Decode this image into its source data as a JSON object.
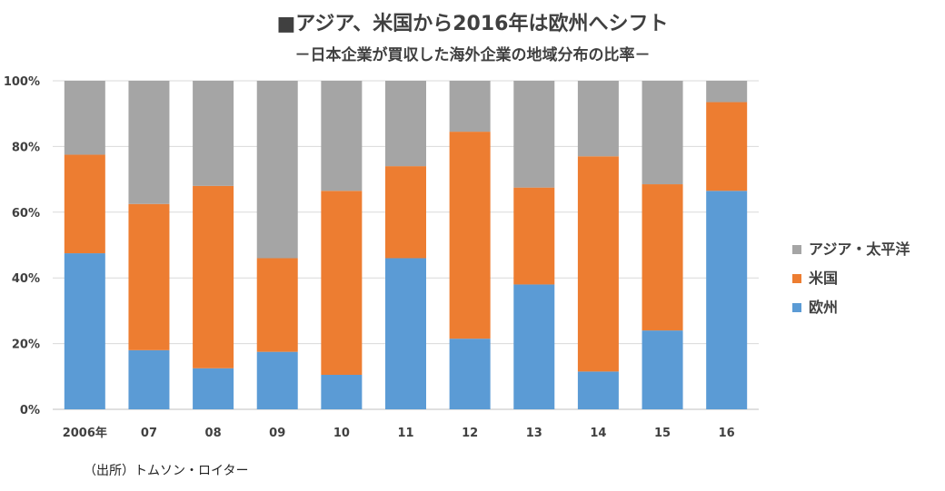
{
  "title": "■アジア、米国から2016年は欧州へシフト",
  "subtitle": "－日本企業が買収した海外企業の地域分布の比率－",
  "source": "（出所）トムソン・ロイター",
  "chart_data": {
    "type": "bar",
    "stacked": true,
    "categories": [
      "2006年",
      "07",
      "08",
      "09",
      "10",
      "11",
      "12",
      "13",
      "14",
      "15",
      "16"
    ],
    "series": [
      {
        "name": "欧州",
        "color": "#5b9bd5",
        "values": [
          47.5,
          18,
          12.5,
          17.5,
          10.5,
          46,
          21.5,
          38,
          11.5,
          24,
          66.5
        ]
      },
      {
        "name": "米国",
        "color": "#ed7d31",
        "values": [
          30,
          44.5,
          55.5,
          28.5,
          56,
          28,
          63,
          29.5,
          65.5,
          44.5,
          27
        ]
      },
      {
        "name": "アジア・太平洋",
        "color": "#a5a5a5",
        "values": [
          22.5,
          37.5,
          32,
          54,
          33.5,
          26,
          15.5,
          32.5,
          23,
          31.5,
          6.5
        ]
      }
    ],
    "y_ticks": [
      "0%",
      "20%",
      "40%",
      "60%",
      "80%",
      "100%"
    ],
    "ylim": [
      0,
      100
    ],
    "legend": [
      "アジア・太平洋",
      "米国",
      "欧州"
    ],
    "legend_position": "right",
    "grid": true
  }
}
